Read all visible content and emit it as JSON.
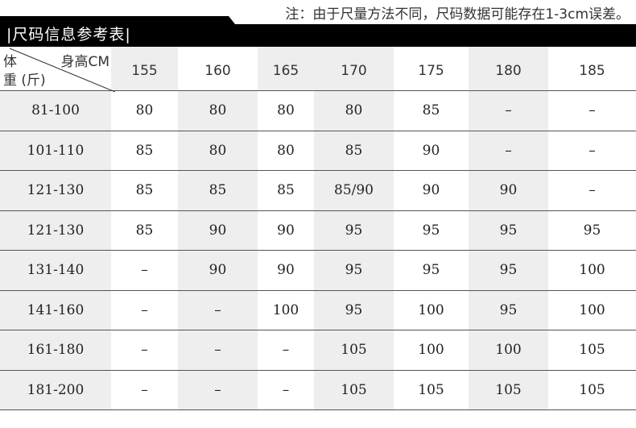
{
  "note": "注：由于尺量方法不同，尺码数据可能存在1-3cm误差。",
  "title": "|尺码信息参考表|",
  "corner": {
    "weight_label_1": "体",
    "weight_label_2": "重 (斤)",
    "height_label": "身高CM"
  },
  "heights": [
    "155",
    "160",
    "165",
    "170",
    "175",
    "180",
    "185"
  ],
  "rows": [
    {
      "weight": "81-100",
      "sizes": [
        "80",
        "80",
        "80",
        "80",
        "85",
        "–",
        "–"
      ]
    },
    {
      "weight": "101-110",
      "sizes": [
        "85",
        "80",
        "80",
        "85",
        "90",
        "–",
        "–"
      ]
    },
    {
      "weight": "121-130",
      "sizes": [
        "85",
        "85",
        "85",
        "85/90",
        "90",
        "90",
        "–"
      ]
    },
    {
      "weight": "121-130",
      "sizes": [
        "85",
        "90",
        "90",
        "95",
        "95",
        "95",
        "95"
      ]
    },
    {
      "weight": "131-140",
      "sizes": [
        "–",
        "90",
        "90",
        "95",
        "95",
        "95",
        "100"
      ]
    },
    {
      "weight": "141-160",
      "sizes": [
        "–",
        "–",
        "100",
        "95",
        "100",
        "95",
        "100"
      ]
    },
    {
      "weight": "161-180",
      "sizes": [
        "–",
        "–",
        "–",
        "105",
        "100",
        "100",
        "105"
      ]
    },
    {
      "weight": "181-200",
      "sizes": [
        "–",
        "–",
        "–",
        "105",
        "105",
        "105",
        "105"
      ]
    }
  ]
}
